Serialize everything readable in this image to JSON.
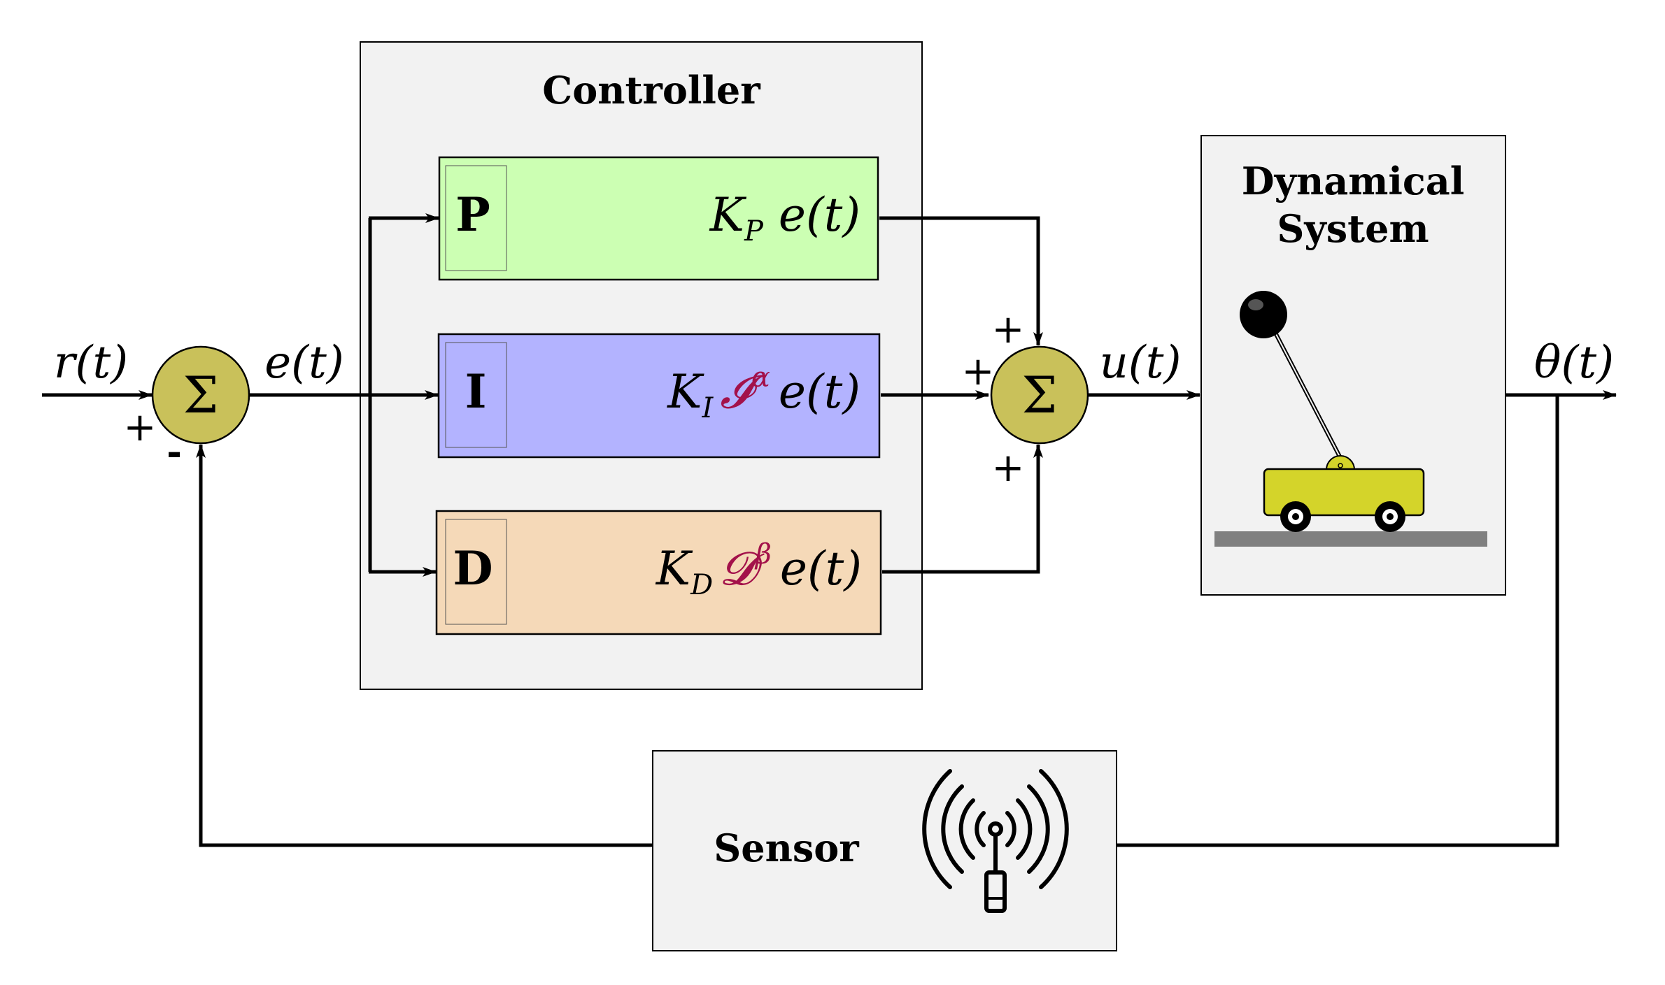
{
  "signals": {
    "reference": "r(t)",
    "error": "e(t)",
    "control": "u(t)",
    "output": "θ(t)"
  },
  "summing_junction_1": {
    "symbol": "Σ",
    "plus_sign": "+",
    "minus_sign": "-"
  },
  "controller": {
    "title": "Controller",
    "blocks": [
      {
        "letter": "P",
        "gain_symbol": "K",
        "gain_subscript": "P",
        "operator": "",
        "operator_power": "",
        "signal": "e(t)"
      },
      {
        "letter": "I",
        "gain_symbol": "K",
        "gain_subscript": "I",
        "operator": "𝓘",
        "operator_power": "α",
        "signal": "e(t)"
      },
      {
        "letter": "D",
        "gain_symbol": "K",
        "gain_subscript": "D",
        "operator": "𝓓",
        "operator_power": "β",
        "signal": "e(t)"
      }
    ]
  },
  "summing_junction_2": {
    "symbol": "Σ",
    "plus_top": "+",
    "plus_left": "+",
    "plus_bottom": "+"
  },
  "plant": {
    "title_line1": "Dynamical",
    "title_line2": "System"
  },
  "sensor": {
    "title": "Sensor"
  },
  "colors": {
    "panel_fill": "#f2f2f2",
    "p_block_fill": "#ccffb3",
    "i_block_fill": "#b3b3ff",
    "d_block_fill": "#f5d9b8",
    "sum_fill": "#c9c15a",
    "operator_color": "#a3114a",
    "cart_fill": "#d4d42a",
    "ground_fill": "#808080"
  }
}
